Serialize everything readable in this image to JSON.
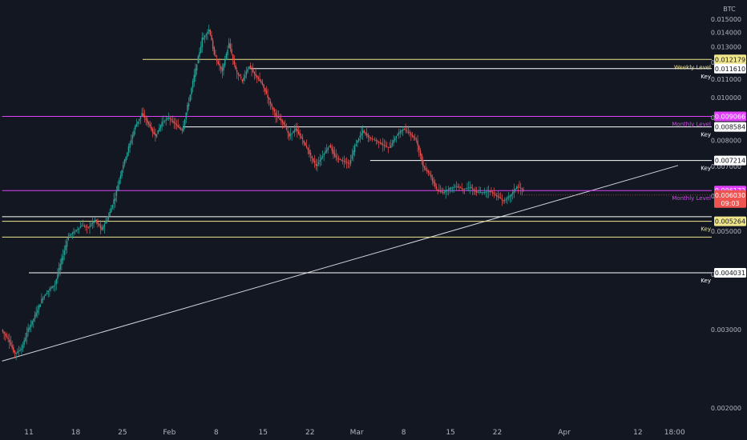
{
  "chart_data": {
    "type": "line",
    "symbol": "BTC",
    "y_scale": "log",
    "ylim": [
      0.0018,
      0.0155
    ],
    "y_ticks": [
      {
        "v": 0.015,
        "label": "0.015000"
      },
      {
        "v": 0.014,
        "label": "0.014000"
      },
      {
        "v": 0.013,
        "label": "0.013000"
      },
      {
        "v": 0.012,
        "label": "0.012000"
      },
      {
        "v": 0.011,
        "label": "0.011000"
      },
      {
        "v": 0.01,
        "label": "0.010000"
      },
      {
        "v": 0.009,
        "label": "0.009000"
      },
      {
        "v": 0.008,
        "label": "0.008000"
      },
      {
        "v": 0.007,
        "label": "0.007000"
      },
      {
        "v": 0.006,
        "label": "0.006000"
      },
      {
        "v": 0.005,
        "label": "0.005000"
      },
      {
        "v": 0.004,
        "label": "0.004000"
      },
      {
        "v": 0.003,
        "label": "0.003000"
      },
      {
        "v": 0.002,
        "label": "0.002000"
      }
    ],
    "x_ticks": [
      {
        "d": 0,
        "label": "11"
      },
      {
        "d": 7,
        "label": "18"
      },
      {
        "d": 14,
        "label": "25"
      },
      {
        "d": 21,
        "label": "Feb"
      },
      {
        "d": 28,
        "label": "8"
      },
      {
        "d": 35,
        "label": "15"
      },
      {
        "d": 42,
        "label": "22"
      },
      {
        "d": 49,
        "label": "Mar"
      },
      {
        "d": 56,
        "label": "8"
      },
      {
        "d": 63,
        "label": "15"
      },
      {
        "d": 70,
        "label": "22"
      },
      {
        "d": 80,
        "label": "Apr"
      },
      {
        "d": 91,
        "label": "12"
      },
      {
        "d": 96.5,
        "label": "18:00"
      }
    ],
    "price_path": [
      [
        -4,
        0.003
      ],
      [
        -3,
        0.00285
      ],
      [
        -2,
        0.00265
      ],
      [
        -1,
        0.00272
      ],
      [
        0,
        0.003
      ],
      [
        1,
        0.00322
      ],
      [
        2,
        0.0035
      ],
      [
        3,
        0.00368
      ],
      [
        4,
        0.0038
      ],
      [
        5,
        0.0043
      ],
      [
        6,
        0.00488
      ],
      [
        7,
        0.005
      ],
      [
        8,
        0.00515
      ],
      [
        9,
        0.0051
      ],
      [
        10,
        0.0053
      ],
      [
        11,
        0.00505
      ],
      [
        12,
        0.0054
      ],
      [
        13,
        0.006
      ],
      [
        14,
        0.0069
      ],
      [
        15,
        0.0077
      ],
      [
        16,
        0.0086
      ],
      [
        17,
        0.0092
      ],
      [
        18,
        0.0087
      ],
      [
        19,
        0.00815
      ],
      [
        20,
        0.0088
      ],
      [
        21,
        0.009
      ],
      [
        22,
        0.0087
      ],
      [
        23,
        0.0084
      ],
      [
        24,
        0.0098
      ],
      [
        25,
        0.0115
      ],
      [
        26,
        0.0135
      ],
      [
        27,
        0.0142
      ],
      [
        28,
        0.0122
      ],
      [
        29,
        0.0115
      ],
      [
        30,
        0.0132
      ],
      [
        31,
        0.0115
      ],
      [
        32,
        0.0109
      ],
      [
        33,
        0.0118
      ],
      [
        34,
        0.0112
      ],
      [
        35,
        0.0107
      ],
      [
        36,
        0.0098
      ],
      [
        37,
        0.0091
      ],
      [
        38,
        0.0088
      ],
      [
        39,
        0.0082
      ],
      [
        40,
        0.0085
      ],
      [
        41,
        0.008
      ],
      [
        42,
        0.0075
      ],
      [
        43,
        0.007
      ],
      [
        44,
        0.0074
      ],
      [
        45,
        0.0078
      ],
      [
        46,
        0.0073
      ],
      [
        47,
        0.0072
      ],
      [
        48,
        0.0071
      ],
      [
        49,
        0.0079
      ],
      [
        50,
        0.0084
      ],
      [
        51,
        0.0081
      ],
      [
        52,
        0.008
      ],
      [
        53,
        0.0078
      ],
      [
        54,
        0.0077
      ],
      [
        55,
        0.0082
      ],
      [
        56,
        0.0085
      ],
      [
        57,
        0.0083
      ],
      [
        58,
        0.008
      ],
      [
        59,
        0.007
      ],
      [
        60,
        0.0067
      ],
      [
        61,
        0.0062
      ],
      [
        62,
        0.0061
      ],
      [
        63,
        0.00625
      ],
      [
        64,
        0.0063
      ],
      [
        65,
        0.00622
      ],
      [
        66,
        0.00628
      ],
      [
        67,
        0.00612
      ],
      [
        68,
        0.00612
      ],
      [
        69,
        0.00615
      ],
      [
        70,
        0.006
      ],
      [
        71,
        0.00585
      ],
      [
        72,
        0.006
      ],
      [
        73,
        0.0063
      ],
      [
        74,
        0.0062
      ]
    ],
    "trendline": {
      "from": [
        -4,
        0.00255
      ],
      "to": [
        97,
        0.00703
      ]
    },
    "levels": [
      {
        "value": 0.012179,
        "label": "0.012179",
        "color": "#f0e68c",
        "tag": "Weekly Level",
        "start_day": 17
      },
      {
        "value": 0.01161,
        "label": "0.011610",
        "color": "#ffffff",
        "tag": "Key",
        "start_day": 33
      },
      {
        "value": 0.009066,
        "label": "0.009066",
        "color": "#e040fb",
        "tag": "Monthly Level",
        "start_day": -4
      },
      {
        "value": 0.008584,
        "label": "0.008584",
        "color": "#ffffff",
        "tag": "Key",
        "start_day": 23
      },
      {
        "value": 0.007214,
        "label": "0.007214",
        "color": "#ffffff",
        "tag": "Key",
        "start_day": 51
      },
      {
        "value": 0.006172,
        "label": "0.006172",
        "color": "#e040fb",
        "tag": "Monthly Level",
        "start_day": -4
      },
      {
        "value": 0.00539,
        "label": "",
        "color": "#ffffff",
        "tag": "",
        "start_day": -4
      },
      {
        "value": 0.005264,
        "label": "0.005264",
        "color": "#f0e68c",
        "tag": "Key",
        "start_day": -4
      },
      {
        "value": 0.00485,
        "label": "",
        "color": "#f0e68c",
        "tag": "",
        "start_day": -4
      },
      {
        "value": 0.004031,
        "label": "0.004031",
        "color": "#ffffff",
        "tag": "Key",
        "start_day": 0
      }
    ],
    "last_price": {
      "value": "0.006030",
      "countdown": "09:03"
    },
    "grid": false,
    "colors": {
      "up": "#26a69a",
      "down": "#ef5350",
      "background": "#131722"
    }
  }
}
